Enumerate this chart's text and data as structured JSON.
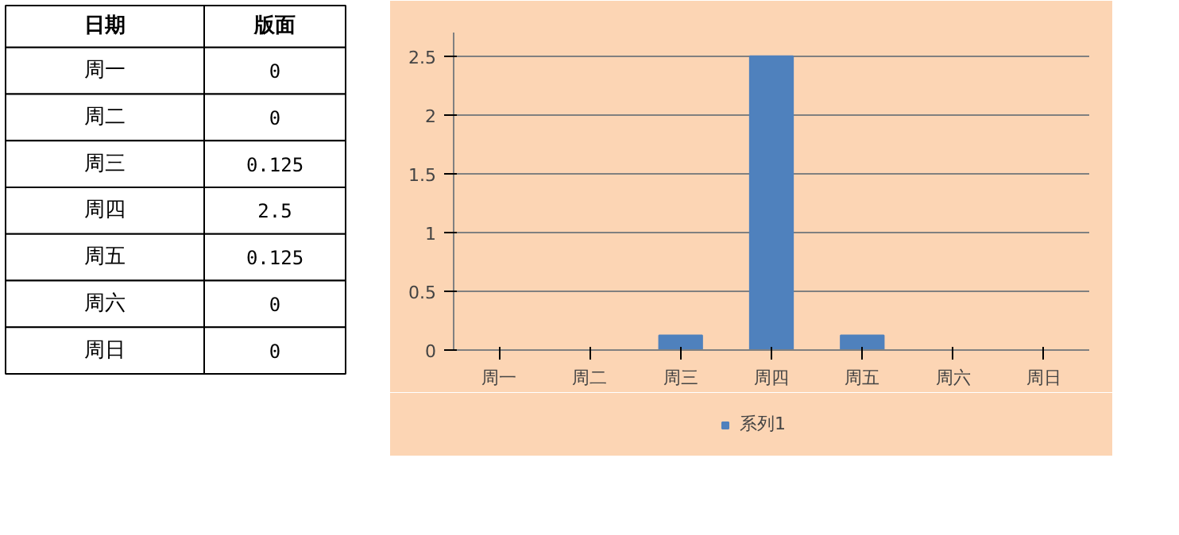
{
  "chart_data": [
    {
      "type": "other",
      "annotations": [
        "日期",
        "版面"
      ],
      "categories": [
        "周一",
        "周二",
        "周三",
        "周四",
        "周五",
        "周六",
        "周日"
      ],
      "value_labels": [
        "0",
        "0",
        "0.125",
        "2.5",
        "0.125",
        "0",
        "0"
      ]
    },
    {
      "type": "bar",
      "categories": [
        "周一",
        "周二",
        "周三",
        "周四",
        "周五",
        "周六",
        "周日"
      ],
      "series": [
        {
          "name": "系列1",
          "color": "#4f81bd",
          "values": [
            0,
            0,
            0.125,
            2.5,
            0.125,
            0,
            0
          ]
        }
      ],
      "ylim": [
        0,
        2.7
      ],
      "yticks": [
        0,
        0.5,
        1,
        1.5,
        2,
        2.5
      ],
      "grid": "y",
      "legend": "bottom"
    }
  ]
}
